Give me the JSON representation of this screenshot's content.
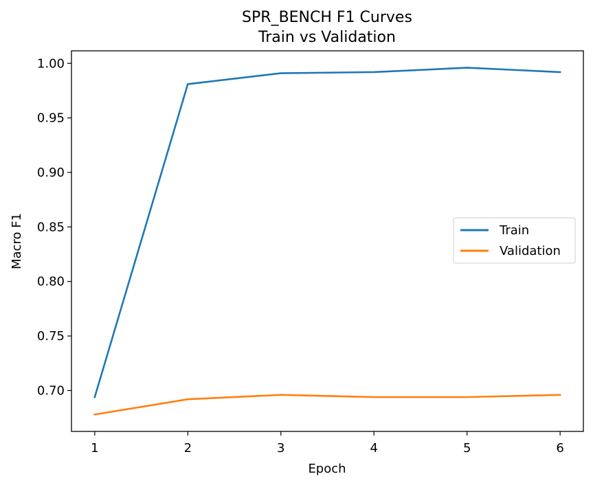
{
  "chart_data": {
    "type": "line",
    "title": "SPR_BENCH F1 Curves",
    "subtitle": "Train vs Validation",
    "xlabel": "Epoch",
    "ylabel": "Macro F1",
    "x": [
      1,
      2,
      3,
      4,
      5,
      6
    ],
    "xlim": [
      0.75,
      6.25
    ],
    "ylim": [
      0.6625,
      1.0115
    ],
    "xticks": [
      1,
      2,
      3,
      4,
      5,
      6
    ],
    "yticks": [
      0.7,
      0.75,
      0.8,
      0.85,
      0.9,
      0.95,
      1.0
    ],
    "ytick_labels": [
      "0.70",
      "0.75",
      "0.80",
      "0.85",
      "0.90",
      "0.95",
      "1.00"
    ],
    "grid": false,
    "legend_position": "center-right",
    "series": [
      {
        "name": "Train",
        "color": "#1f77b4",
        "values": [
          0.694,
          0.981,
          0.991,
          0.992,
          0.996,
          0.992
        ]
      },
      {
        "name": "Validation",
        "color": "#ff7f0e",
        "values": [
          0.678,
          0.692,
          0.696,
          0.694,
          0.694,
          0.696
        ]
      }
    ]
  }
}
